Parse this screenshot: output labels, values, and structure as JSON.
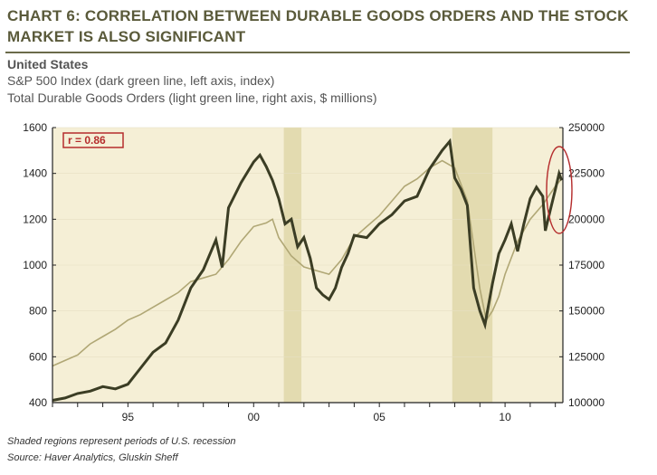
{
  "title": "CHART 6: CORRELATION BETWEEN DURABLE GOODS ORDERS AND THE STOCK MARKET IS ALSO SIGNIFICANT",
  "subtitle_country": "United States",
  "subtitle_line1": "S&P 500 Index (dark green line, left axis, index)",
  "subtitle_line2": "Total Durable Goods Orders (light green line, right axis, $ millions)",
  "footnote1": "Shaded regions represent periods of U.S. recession",
  "footnote2": "Source: Haver Analytics, Gluskin Sheff",
  "colors": {
    "plot_bg": "#f5efd6",
    "recession": "#e3dbb0",
    "sp500": "#3b3d24",
    "durable": "#b0a775",
    "annotation": "#b52d2d"
  },
  "chart_data": {
    "type": "line",
    "annotation": "r = 0.86",
    "x_ticks": [
      {
        "x": 1995,
        "label": "95"
      },
      {
        "x": 2000,
        "label": "00"
      },
      {
        "x": 2005,
        "label": "05"
      },
      {
        "x": 2010,
        "label": "10"
      }
    ],
    "xlim": [
      1992,
      2012.3
    ],
    "y_left": {
      "lim": [
        400,
        1600
      ],
      "ticks": [
        400,
        600,
        800,
        1000,
        1200,
        1400,
        1600
      ]
    },
    "y_right": {
      "lim": [
        100000,
        250000
      ],
      "ticks": [
        100000,
        125000,
        150000,
        175000,
        200000,
        225000,
        250000
      ]
    },
    "recessions": [
      [
        2001.2,
        2001.9
      ],
      [
        2007.9,
        2009.5
      ]
    ],
    "series": [
      {
        "axis": "left",
        "points": [
          [
            1992.0,
            410
          ],
          [
            1992.5,
            420
          ],
          [
            1993.0,
            440
          ],
          [
            1993.5,
            450
          ],
          [
            1994.0,
            470
          ],
          [
            1994.5,
            460
          ],
          [
            1995.0,
            480
          ],
          [
            1995.5,
            550
          ],
          [
            1996.0,
            620
          ],
          [
            1996.5,
            660
          ],
          [
            1997.0,
            760
          ],
          [
            1997.5,
            900
          ],
          [
            1998.0,
            980
          ],
          [
            1998.5,
            1110
          ],
          [
            1998.75,
            990
          ],
          [
            1999.0,
            1250
          ],
          [
            1999.5,
            1360
          ],
          [
            2000.0,
            1450
          ],
          [
            2000.25,
            1480
          ],
          [
            2000.5,
            1430
          ],
          [
            2000.75,
            1370
          ],
          [
            2001.0,
            1290
          ],
          [
            2001.25,
            1180
          ],
          [
            2001.5,
            1200
          ],
          [
            2001.75,
            1080
          ],
          [
            2002.0,
            1120
          ],
          [
            2002.25,
            1030
          ],
          [
            2002.5,
            900
          ],
          [
            2002.75,
            870
          ],
          [
            2003.0,
            850
          ],
          [
            2003.25,
            900
          ],
          [
            2003.5,
            990
          ],
          [
            2003.75,
            1050
          ],
          [
            2004.0,
            1130
          ],
          [
            2004.5,
            1120
          ],
          [
            2005.0,
            1180
          ],
          [
            2005.5,
            1220
          ],
          [
            2006.0,
            1280
          ],
          [
            2006.5,
            1300
          ],
          [
            2007.0,
            1420
          ],
          [
            2007.5,
            1500
          ],
          [
            2007.8,
            1540
          ],
          [
            2008.0,
            1380
          ],
          [
            2008.25,
            1330
          ],
          [
            2008.5,
            1260
          ],
          [
            2008.75,
            900
          ],
          [
            2009.0,
            800
          ],
          [
            2009.2,
            740
          ],
          [
            2009.5,
            920
          ],
          [
            2009.75,
            1050
          ],
          [
            2010.0,
            1110
          ],
          [
            2010.25,
            1180
          ],
          [
            2010.5,
            1060
          ],
          [
            2010.75,
            1180
          ],
          [
            2011.0,
            1290
          ],
          [
            2011.25,
            1340
          ],
          [
            2011.5,
            1300
          ],
          [
            2011.6,
            1150
          ],
          [
            2011.8,
            1240
          ],
          [
            2012.0,
            1330
          ],
          [
            2012.15,
            1400
          ],
          [
            2012.25,
            1370
          ]
        ]
      },
      {
        "axis": "right",
        "points": [
          [
            1992.0,
            120000
          ],
          [
            1992.5,
            123000
          ],
          [
            1993.0,
            126000
          ],
          [
            1993.5,
            132000
          ],
          [
            1994.0,
            136000
          ],
          [
            1994.5,
            140000
          ],
          [
            1995.0,
            145000
          ],
          [
            1995.5,
            148000
          ],
          [
            1996.0,
            152000
          ],
          [
            1996.5,
            156000
          ],
          [
            1997.0,
            160000
          ],
          [
            1997.5,
            166000
          ],
          [
            1998.0,
            168000
          ],
          [
            1998.5,
            170000
          ],
          [
            1999.0,
            178000
          ],
          [
            1999.5,
            188000
          ],
          [
            2000.0,
            196000
          ],
          [
            2000.5,
            198000
          ],
          [
            2000.75,
            200000
          ],
          [
            2001.0,
            190000
          ],
          [
            2001.5,
            180000
          ],
          [
            2002.0,
            174000
          ],
          [
            2002.5,
            172000
          ],
          [
            2003.0,
            170000
          ],
          [
            2003.5,
            178000
          ],
          [
            2004.0,
            190000
          ],
          [
            2004.5,
            196000
          ],
          [
            2005.0,
            202000
          ],
          [
            2005.5,
            210000
          ],
          [
            2006.0,
            218000
          ],
          [
            2006.5,
            222000
          ],
          [
            2007.0,
            228000
          ],
          [
            2007.5,
            232000
          ],
          [
            2008.0,
            228000
          ],
          [
            2008.5,
            210000
          ],
          [
            2009.0,
            162000
          ],
          [
            2009.25,
            145000
          ],
          [
            2009.5,
            150000
          ],
          [
            2009.75,
            158000
          ],
          [
            2010.0,
            170000
          ],
          [
            2010.5,
            188000
          ],
          [
            2011.0,
            200000
          ],
          [
            2011.5,
            208000
          ],
          [
            2012.0,
            218000
          ],
          [
            2012.25,
            222000
          ]
        ]
      }
    ]
  }
}
